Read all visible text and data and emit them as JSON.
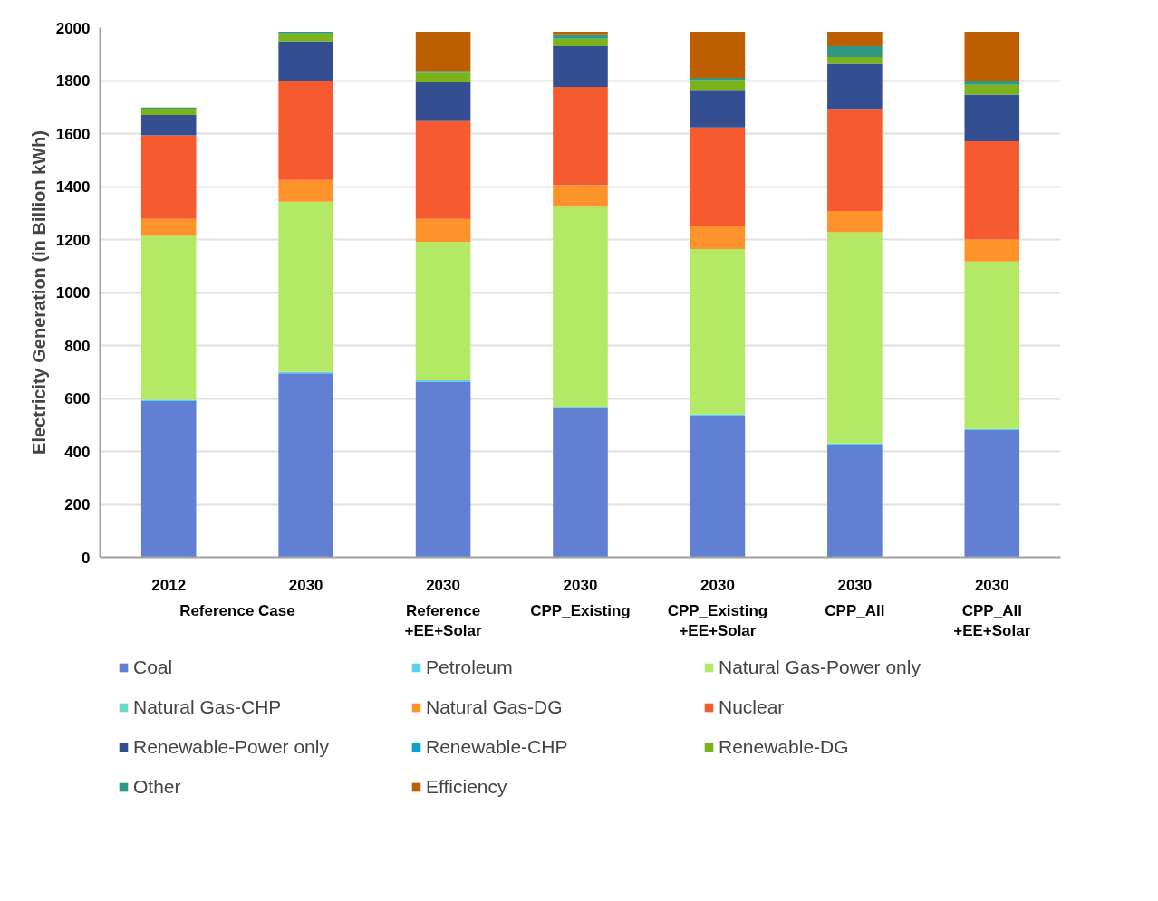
{
  "chart_data": {
    "type": "bar",
    "stacked": true,
    "ylabel": "Electricity Generation (in Billion kWh)",
    "categories": [
      "2012",
      "2030",
      "2030",
      "2030",
      "2030",
      "2030",
      "2030"
    ],
    "annotations": [
      "Reference Case",
      "Reference\n+EE+Solar",
      "CPP_Existing",
      "CPP_Existing\n+EE+Solar",
      "CPP_All",
      "CPP_All\n+EE+Solar"
    ],
    "ylim": [
      0,
      2000
    ],
    "yticks": [
      0,
      200,
      400,
      600,
      800,
      1000,
      1200,
      1400,
      1600,
      1800,
      2000
    ],
    "grid": "y",
    "legend": "bottom",
    "series": [
      {
        "name": "Coal",
        "color": "#6180d4",
        "values": [
          590,
          695,
          663,
          563,
          535,
          426,
          480
        ]
      },
      {
        "name": "Petroleum",
        "color": "#5bd0f0",
        "values": [
          5,
          5,
          5,
          5,
          5,
          5,
          5
        ]
      },
      {
        "name": "Natural Gas-Power only",
        "color": "#b3e964",
        "values": [
          619,
          643,
          523,
          755,
          624,
          796,
          632
        ]
      },
      {
        "name": "Natural Gas-CHP",
        "color": "#6bd8c0",
        "values": [
          0,
          0,
          0,
          0,
          0,
          0,
          0
        ]
      },
      {
        "name": "Natural Gas-DG",
        "color": "#fe922b",
        "values": [
          64,
          82,
          87,
          82,
          86,
          81,
          83
        ]
      },
      {
        "name": "Nuclear",
        "color": "#f65a2f",
        "values": [
          315,
          375,
          369,
          371,
          373,
          385,
          371
        ]
      },
      {
        "name": "Renewable-Power only",
        "color": "#344e92",
        "values": [
          77,
          149,
          146,
          154,
          142,
          170,
          176
        ]
      },
      {
        "name": "Renewable-CHP",
        "color": "#0ba0c8",
        "values": [
          0,
          0,
          0,
          0,
          0,
          0,
          0
        ]
      },
      {
        "name": "Renewable-DG",
        "color": "#7db31a",
        "values": [
          24,
          30,
          37,
          28,
          37,
          26,
          37
        ]
      },
      {
        "name": "Other",
        "color": "#2e9980",
        "values": [
          4,
          6,
          7,
          14,
          8,
          41,
          14
        ]
      },
      {
        "name": "Efficiency",
        "color": "#bd5e00",
        "values": [
          0,
          0,
          148,
          13,
          175,
          55,
          187
        ]
      }
    ]
  }
}
